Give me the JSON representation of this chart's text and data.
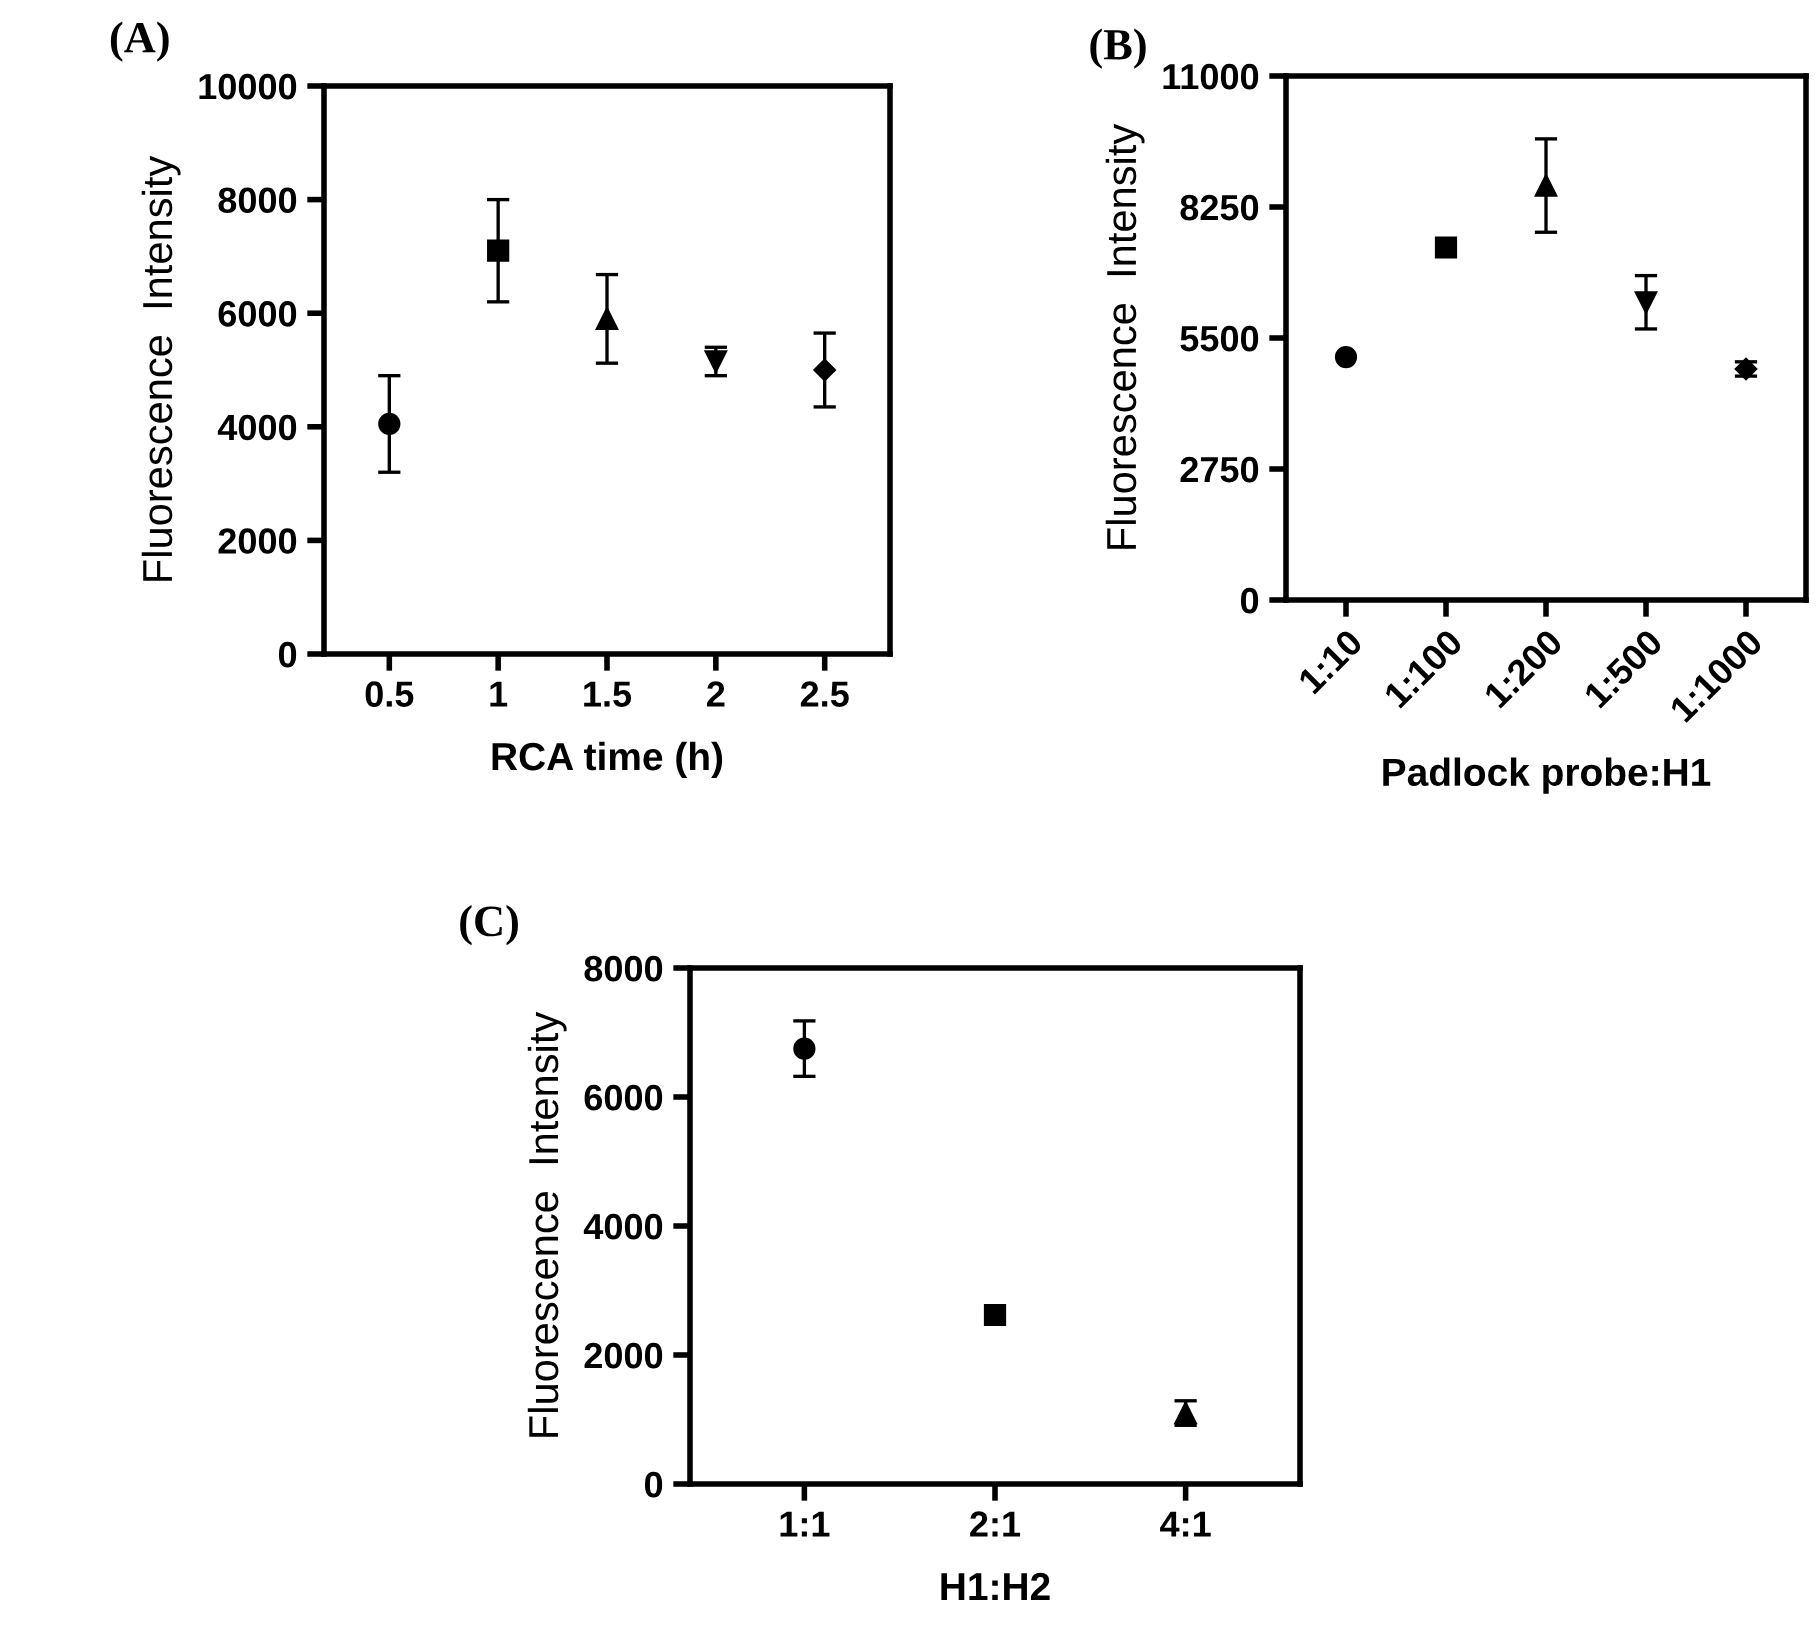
{
  "chart_data": [
    {
      "type": "scatter",
      "title": "(A)",
      "xlabel": "RCA time (h)",
      "ylabel": "Fluorescence  Intensity",
      "categories": [
        "0.5",
        "1",
        "1.5",
        "2",
        "2.5"
      ],
      "ylim": [
        0,
        10000
      ],
      "yticks": [
        0,
        2000,
        4000,
        6000,
        8000,
        10000
      ],
      "grid": false,
      "legend": false,
      "series": [
        {
          "color": "#000000",
          "marker": "circle",
          "values": [
            4050,
            null,
            null,
            null,
            null
          ],
          "errors": [
            850,
            null,
            null,
            null,
            null
          ]
        },
        {
          "color": "#000000",
          "marker": "square",
          "values": [
            null,
            7100,
            null,
            null,
            null
          ],
          "errors": [
            null,
            900,
            null,
            null,
            null
          ]
        },
        {
          "color": "#000000",
          "marker": "triangle",
          "values": [
            null,
            null,
            5900,
            null,
            null
          ],
          "errors": [
            null,
            null,
            780,
            null,
            null
          ]
        },
        {
          "color": "#000000",
          "marker": "triangle_down",
          "values": [
            null,
            null,
            null,
            5150,
            null
          ],
          "errors": [
            null,
            null,
            null,
            250,
            null
          ]
        },
        {
          "color": "#000000",
          "marker": "diamond",
          "values": [
            null,
            null,
            null,
            null,
            5000
          ],
          "errors": [
            null,
            null,
            null,
            null,
            650
          ]
        }
      ]
    },
    {
      "type": "scatter",
      "title": "(B)",
      "xlabel": "Padlock probe:H1",
      "ylabel": "Fluorescence  Intensity",
      "categories": [
        "1:10",
        "1:100",
        "1:200",
        "1:500",
        "1:1000"
      ],
      "ylim": [
        0,
        11000
      ],
      "yticks": [
        0,
        2750,
        5500,
        8250,
        11000
      ],
      "grid": false,
      "legend": false,
      "series": [
        {
          "color": "#000000",
          "marker": "circle",
          "values": [
            5100,
            null,
            null,
            null,
            null
          ],
          "errors": [
            null,
            null,
            null,
            null,
            null
          ]
        },
        {
          "color": "#000000",
          "marker": "square",
          "values": [
            null,
            7400,
            null,
            null,
            null
          ],
          "errors": [
            null,
            null,
            null,
            null,
            null
          ]
        },
        {
          "color": "#000000",
          "marker": "triangle",
          "values": [
            null,
            null,
            8700,
            null,
            null
          ],
          "errors": [
            null,
            null,
            980,
            null,
            null
          ]
        },
        {
          "color": "#000000",
          "marker": "triangle_down",
          "values": [
            null,
            null,
            null,
            6250,
            null
          ],
          "errors": [
            null,
            null,
            null,
            560,
            null
          ]
        },
        {
          "color": "#000000",
          "marker": "diamond",
          "values": [
            null,
            null,
            null,
            null,
            4850
          ],
          "errors": [
            null,
            null,
            null,
            null,
            150
          ]
        }
      ]
    },
    {
      "type": "scatter",
      "title": "(C)",
      "xlabel": "H1:H2",
      "ylabel": "Fluorescence  Intensity",
      "categories": [
        "1:1",
        "2:1",
        "4:1"
      ],
      "ylim": [
        0,
        8000
      ],
      "yticks": [
        0,
        2000,
        4000,
        6000,
        8000
      ],
      "grid": false,
      "legend": false,
      "series": [
        {
          "color": "#000000",
          "marker": "circle",
          "values": [
            6750,
            null,
            null
          ],
          "errors": [
            430,
            null,
            null
          ]
        },
        {
          "color": "#000000",
          "marker": "square",
          "values": [
            null,
            2620,
            null
          ],
          "errors": [
            null,
            null,
            null
          ]
        },
        {
          "color": "#000000",
          "marker": "triangle",
          "values": [
            null,
            null,
            1100
          ],
          "errors": [
            null,
            null,
            190
          ]
        }
      ]
    }
  ]
}
